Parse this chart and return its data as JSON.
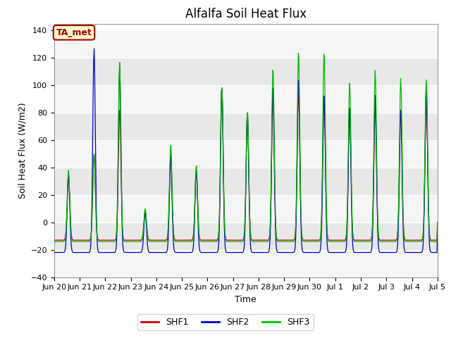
{
  "title": "Alfalfa Soil Heat Flux",
  "xlabel": "Time",
  "ylabel": "Soil Heat Flux (W/m2)",
  "ylim": [
    -40,
    145
  ],
  "legend_entries": [
    "SHF1",
    "SHF2",
    "SHF3"
  ],
  "line_colors": [
    "#cc0000",
    "#0000cc",
    "#00bb00"
  ],
  "annotation_text": "TA_met",
  "annotation_color": "#aa0000",
  "annotation_bg": "#ffffcc",
  "tick_labels": [
    "Jun 20",
    "Jun 21",
    "Jun 22",
    "Jun 23",
    "Jun 24",
    "Jun 25",
    "Jun 26",
    "Jun 27",
    "Jun 28",
    "Jun 29",
    "Jun 30",
    "Jul 1",
    "Jul 2",
    "Jul 3",
    "Jul 4",
    "Jul 5"
  ],
  "yticks": [
    -40,
    -20,
    0,
    20,
    40,
    60,
    80,
    100,
    120,
    140
  ],
  "band_colors": [
    "#f5f5f5",
    "#e8e8e8"
  ],
  "title_fontsize": 12,
  "label_fontsize": 9,
  "tick_fontsize": 8
}
